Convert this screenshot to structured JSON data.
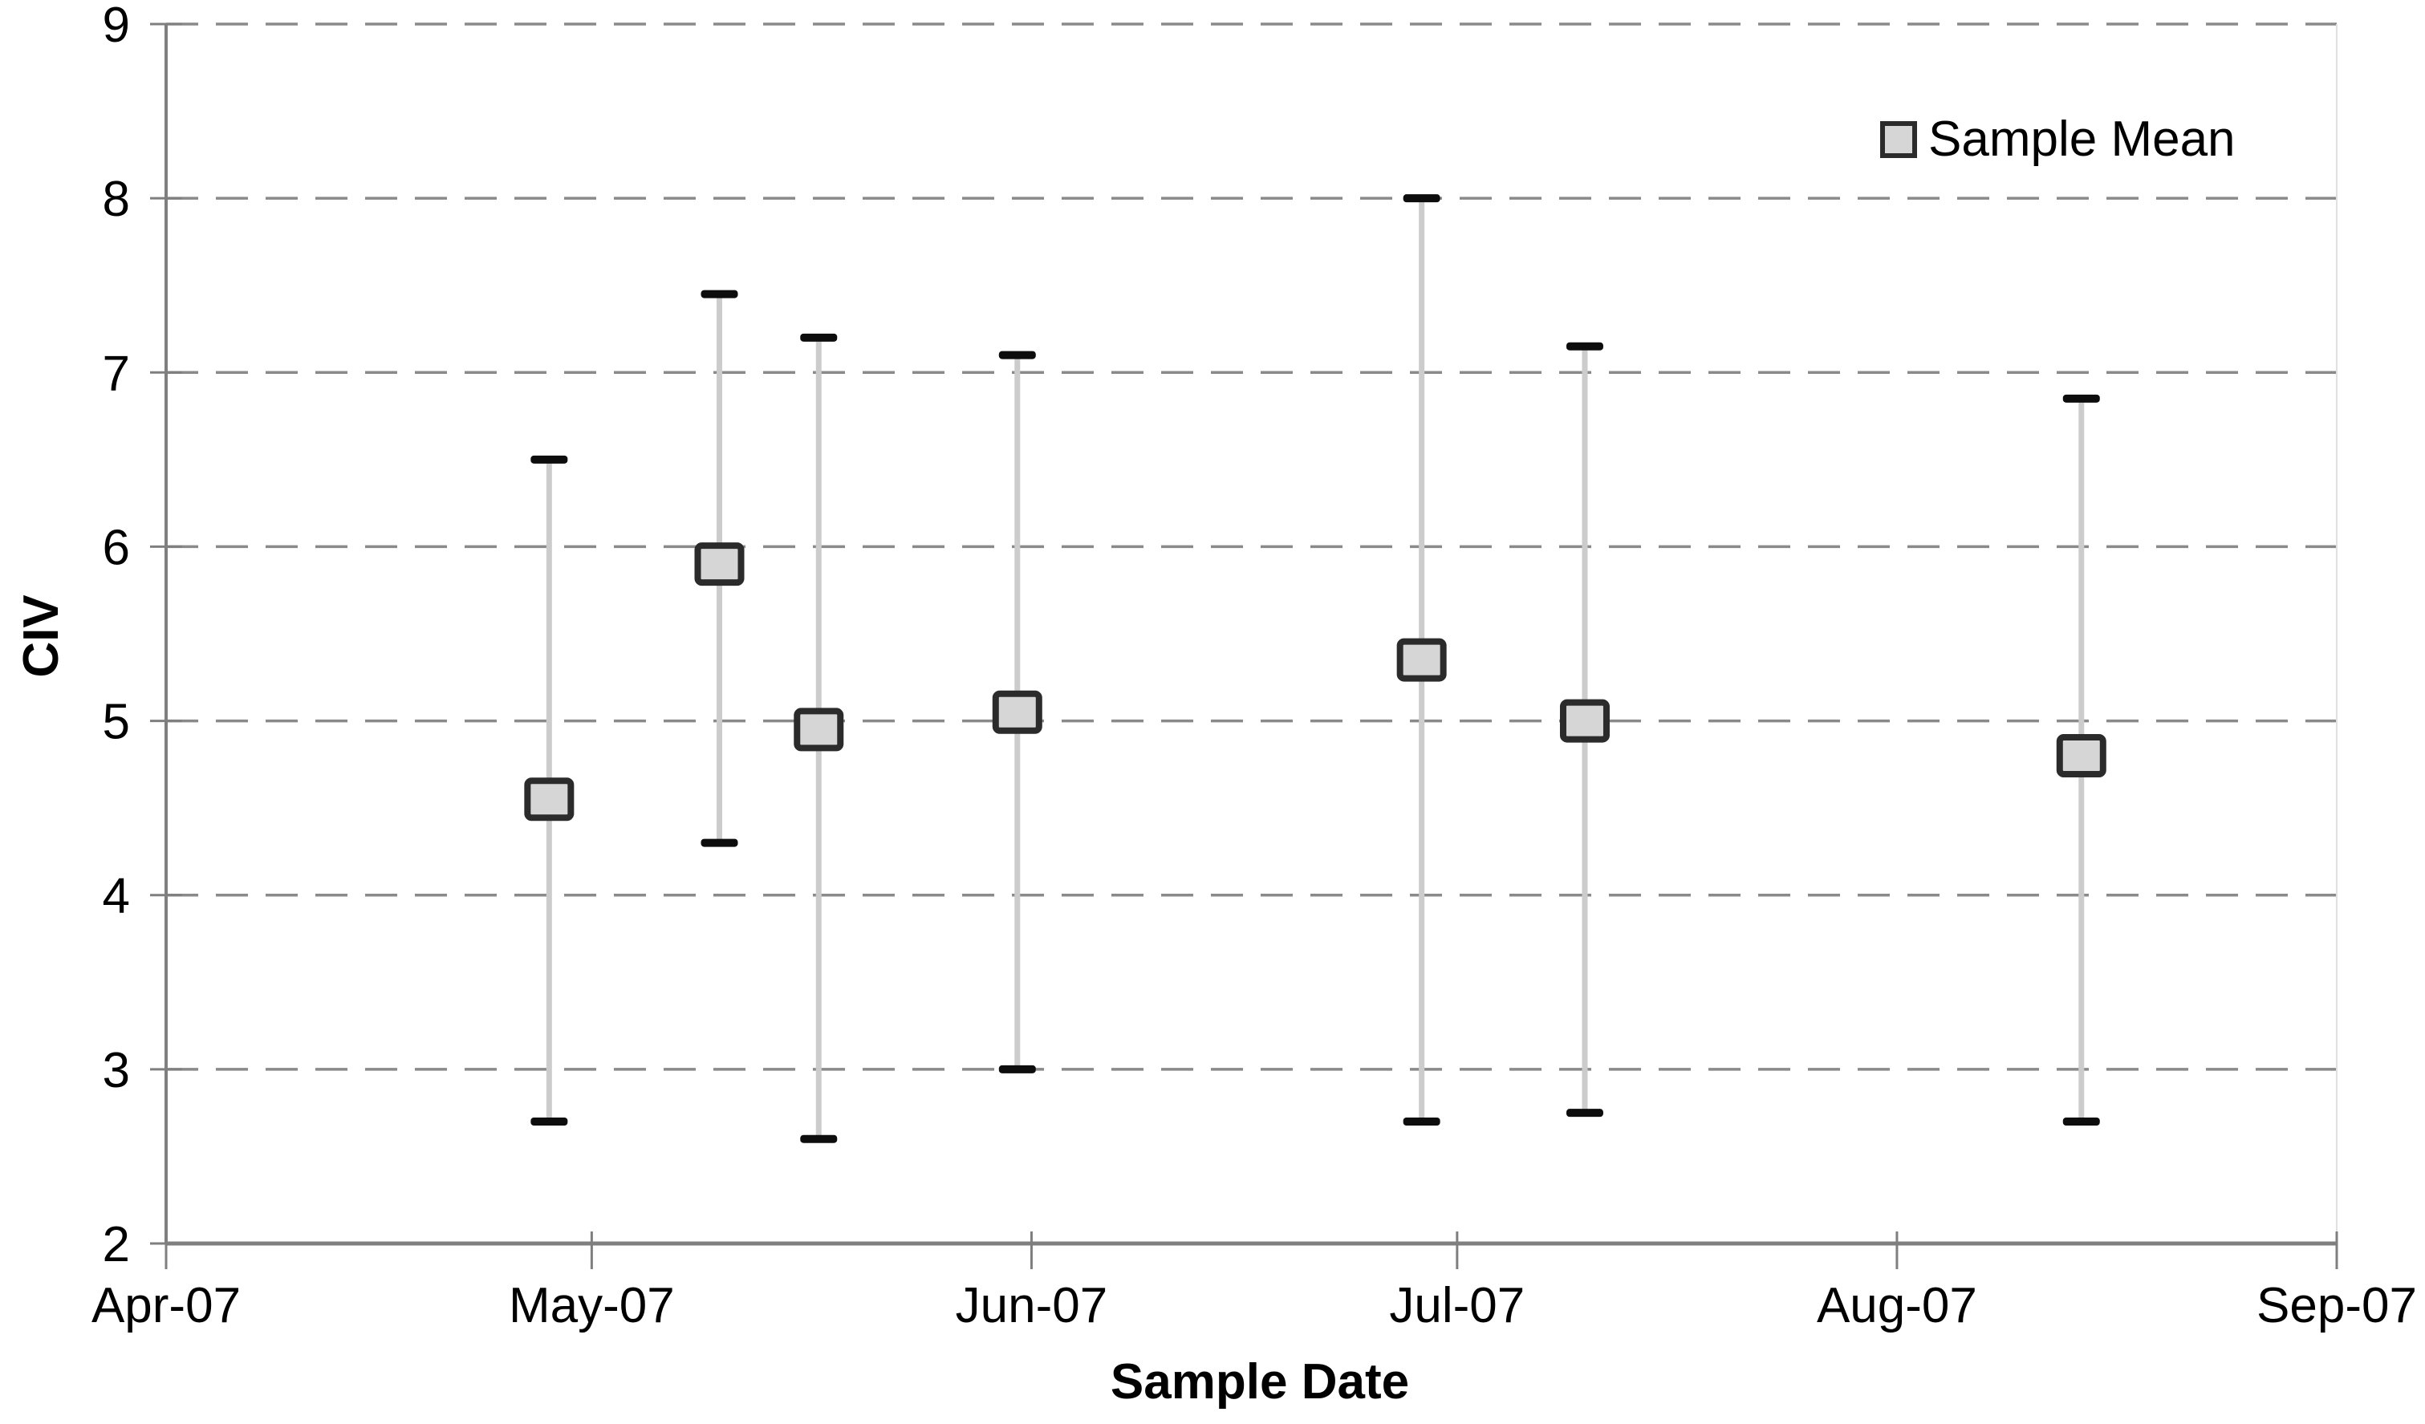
{
  "chart_data": {
    "type": "scatter",
    "subtype": "means-with-error-bars",
    "title": "",
    "xlabel": "Sample Date",
    "ylabel": "CIV",
    "legend": {
      "label": "Sample Mean",
      "position": "top-right",
      "marker": "square"
    },
    "ylim": [
      2,
      9
    ],
    "y_ticks": [
      2,
      3,
      4,
      5,
      6,
      7,
      8,
      9
    ],
    "y_gridlines_dashed": [
      3,
      4,
      5,
      6,
      7,
      8,
      9
    ],
    "grid": "horizontal-dashed",
    "x_axis": {
      "total_days": 153,
      "ticks": [
        {
          "label": "Apr-07",
          "day": 0
        },
        {
          "label": "May-07",
          "day": 30
        },
        {
          "label": "Jun-07",
          "day": 61
        },
        {
          "label": "Jul-07",
          "day": 91
        },
        {
          "label": "Aug-07",
          "day": 122
        },
        {
          "label": "Sep-07",
          "day": 153
        }
      ]
    },
    "series": [
      {
        "name": "Sample Mean",
        "marker": "square",
        "points": [
          {
            "day": 27,
            "mean": 4.55,
            "low": 2.7,
            "high": 6.5
          },
          {
            "day": 39,
            "mean": 5.9,
            "low": 4.3,
            "high": 7.45
          },
          {
            "day": 46,
            "mean": 4.95,
            "low": 2.6,
            "high": 7.2
          },
          {
            "day": 60,
            "mean": 5.05,
            "low": 3.0,
            "high": 7.1
          },
          {
            "day": 88.5,
            "mean": 5.35,
            "low": 2.7,
            "high": 8.0
          },
          {
            "day": 100,
            "mean": 5.0,
            "low": 2.75,
            "high": 7.15
          },
          {
            "day": 135,
            "mean": 4.8,
            "low": 2.7,
            "high": 6.85
          }
        ]
      }
    ],
    "colors": {
      "gridline": "#8a8a8a",
      "axis": "#7f7f7f",
      "error_bar_line": "#cccccc",
      "error_bar_cap": "#0d0d0d",
      "marker_fill": "#d6d6d6",
      "marker_border": "#2b2b2b",
      "text": "#000000",
      "plot_right_border": "#e0e0e0",
      "background": "#ffffff"
    }
  }
}
